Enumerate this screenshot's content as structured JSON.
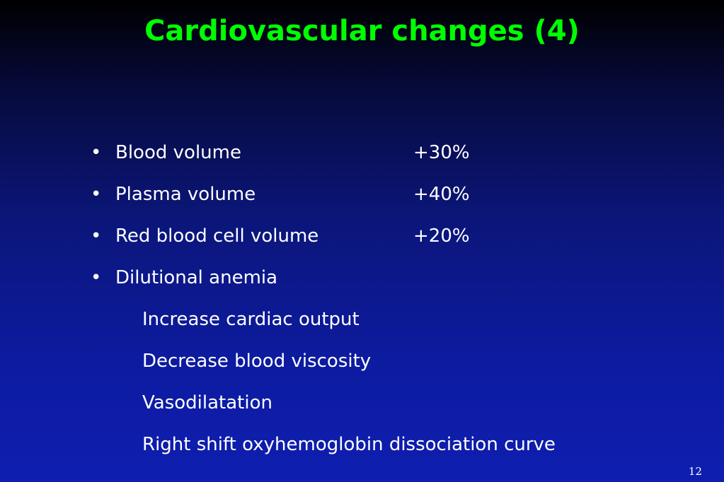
{
  "slide": {
    "title": "Cardiovascular changes (4)",
    "bullet_symbol": "•",
    "items": [
      {
        "label": "Blood volume",
        "value": "+30%"
      },
      {
        "label": "Plasma volume",
        "value": "+40%"
      },
      {
        "label": "Red blood cell volume",
        "value": "+20%"
      },
      {
        "label": "Dilutional anemia",
        "value": ""
      }
    ],
    "sub_items": [
      "Increase cardiac output",
      "Decrease blood viscosity",
      "Vasodilatation",
      "Right shift oxyhemoglobin dissociation curve"
    ],
    "page_number": "12",
    "colors": {
      "title": "#00ff00",
      "text": "#ffffff",
      "background_top": "#000000",
      "background_bottom": "#0e1eb0"
    }
  }
}
